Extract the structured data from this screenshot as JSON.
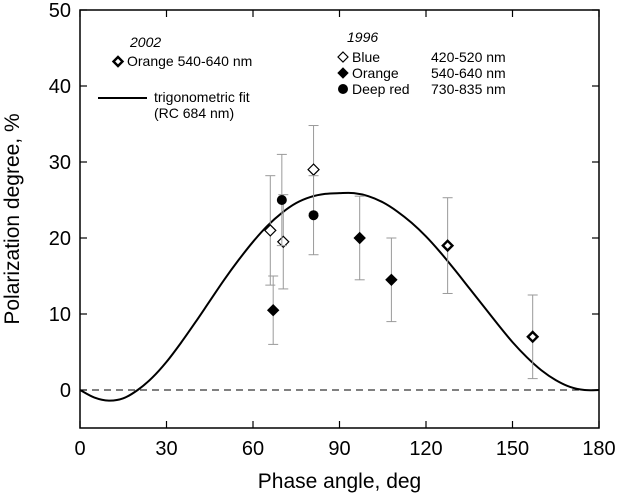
{
  "chart_data": {
    "type": "scatter",
    "xlabel": "Phase angle, deg",
    "ylabel": "Polarization degree, %",
    "xlim": [
      0,
      180
    ],
    "ylim": [
      -5,
      50
    ],
    "xticks": [
      0,
      30,
      60,
      90,
      120,
      150,
      180
    ],
    "yticks": [
      0,
      10,
      20,
      30,
      40,
      50
    ],
    "grid": false,
    "legend_placement": "top",
    "reference_line": {
      "y": 0,
      "style": "dashed"
    },
    "legend": {
      "group_2002": {
        "heading": "2002",
        "entries": [
          {
            "marker": "open-diamond-bold",
            "label": "Orange 540-640  nm"
          }
        ]
      },
      "fit_entry": {
        "label_line1": "trigonometric fit",
        "label_line2": "(RC  684 nm)"
      },
      "group_1996": {
        "heading": "1996",
        "entries": [
          {
            "marker": "open-diamond",
            "name": "Blue",
            "range": "420-520  nm"
          },
          {
            "marker": "filled-diamond",
            "name": "Orange",
            "range": "540-640  nm"
          },
          {
            "marker": "filled-circle",
            "name": "Deep red",
            "range": "730-835  nm"
          }
        ]
      }
    },
    "series": [
      {
        "name": "Orange 540-640 nm (2002)",
        "marker": "open-diamond-bold",
        "points": [
          {
            "x": 127.5,
            "y": 19.0,
            "err": 6.3
          },
          {
            "x": 157,
            "y": 7.0,
            "err": 5.5
          }
        ]
      },
      {
        "name": "Blue 420-520 nm (1996)",
        "marker": "open-diamond",
        "points": [
          {
            "x": 66,
            "y": 21.0,
            "err": 7.2
          },
          {
            "x": 70.5,
            "y": 19.5,
            "err": 6.2
          },
          {
            "x": 81,
            "y": 29.0,
            "err": 5.8
          }
        ]
      },
      {
        "name": "Orange 540-640 nm (1996)",
        "marker": "filled-diamond",
        "points": [
          {
            "x": 67,
            "y": 10.5,
            "err": 4.5
          },
          {
            "x": 97,
            "y": 20.0,
            "err": 5.5
          },
          {
            "x": 108,
            "y": 14.5,
            "err": 5.5
          }
        ]
      },
      {
        "name": "Deep red 730-835 nm (1996)",
        "marker": "filled-circle",
        "points": [
          {
            "x": 70,
            "y": 25.0,
            "err": 6.0
          },
          {
            "x": 81,
            "y": 23.0,
            "err": 5.2
          }
        ]
      }
    ],
    "fit_curve": {
      "name": "trigonometric fit (RC 684 nm)",
      "x": [
        0,
        5,
        10,
        15,
        20,
        25,
        30,
        35,
        40,
        45,
        50,
        55,
        60,
        65,
        70,
        75,
        80,
        85,
        90,
        95,
        100,
        105,
        110,
        115,
        120,
        125,
        130,
        135,
        140,
        145,
        150,
        155,
        160,
        165,
        170,
        175,
        180
      ],
      "y": [
        0.0,
        -1.0,
        -1.4,
        -1.1,
        0.0,
        1.6,
        3.7,
        6.2,
        8.9,
        11.7,
        14.5,
        17.1,
        19.5,
        21.6,
        23.3,
        24.6,
        25.4,
        25.8,
        25.9,
        25.9,
        25.5,
        24.7,
        23.5,
        22.0,
        20.2,
        18.1,
        15.8,
        13.4,
        11.0,
        8.6,
        6.3,
        4.3,
        2.6,
        1.3,
        0.4,
        0.0,
        0.0
      ]
    }
  }
}
